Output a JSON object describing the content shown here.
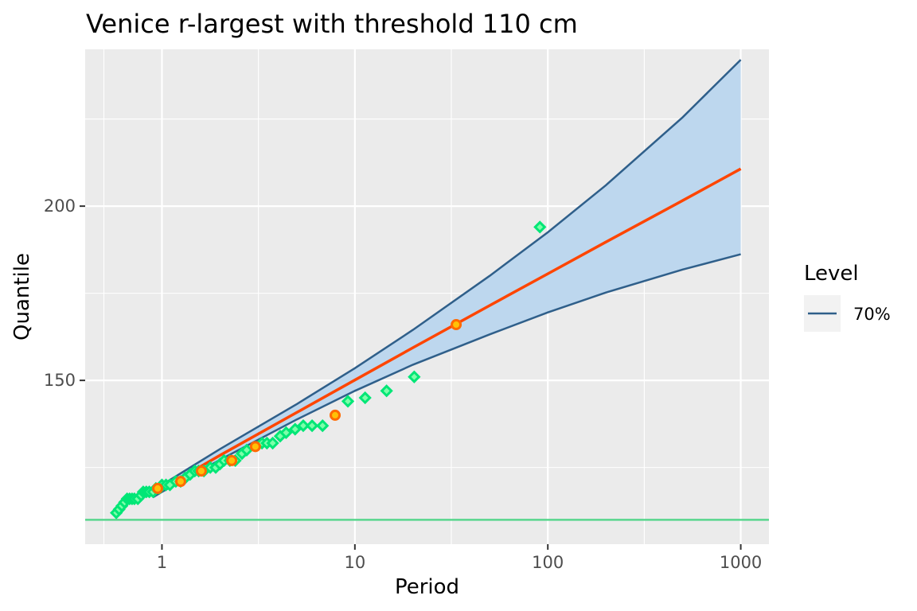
{
  "chart_data": {
    "type": "line",
    "title": "Venice r-largest with threshold 110 cm",
    "xlabel": "Period",
    "ylabel": "Quantile",
    "x_scale": "log10",
    "xlim": [
      0.4,
      1400
    ],
    "ylim": [
      103,
      245
    ],
    "x_ticks": [
      1,
      10,
      100,
      1000
    ],
    "x_tick_labels": [
      "1",
      "10",
      "100",
      "1000"
    ],
    "y_ticks": [
      150,
      200
    ],
    "y_tick_labels": [
      "150",
      "200"
    ],
    "x_minor_ticks": [
      0.5,
      3.1623,
      31.623,
      316.23
    ],
    "y_minor_ticks": [
      125,
      175,
      225
    ],
    "threshold": 110,
    "grid": true,
    "legend": {
      "title": "Level",
      "placement": "right",
      "entries": [
        {
          "label": "70%",
          "color": "#2F5F8A"
        }
      ]
    },
    "return_level": {
      "name": "return level",
      "color": "#FF4500",
      "x": [
        0.9,
        1,
        2,
        5,
        10,
        20,
        50,
        100,
        200,
        500,
        1000
      ],
      "y": [
        117.5,
        118.9,
        128.5,
        140.8,
        150.1,
        159.4,
        171.5,
        180.6,
        189.7,
        201.6,
        210.7
      ]
    },
    "confidence_band": {
      "level": "70%",
      "fill": "#BDD7EE",
      "line": "#2F5F8A",
      "x": [
        0.9,
        1,
        2,
        5,
        10,
        20,
        50,
        100,
        200,
        500,
        1000
      ],
      "upper": [
        118.5,
        120.0,
        130.3,
        143.2,
        153.5,
        164.5,
        180.0,
        192.5,
        206.0,
        225.5,
        242.0
      ],
      "lower": [
        116.5,
        118.0,
        127.2,
        138.8,
        147.0,
        154.5,
        163.2,
        169.5,
        175.2,
        181.8,
        186.2
      ]
    },
    "observed": {
      "name": "observed",
      "color": "#00E676",
      "points": [
        {
          "x": 0.58,
          "y": 112
        },
        {
          "x": 0.6,
          "y": 113
        },
        {
          "x": 0.62,
          "y": 114
        },
        {
          "x": 0.64,
          "y": 115
        },
        {
          "x": 0.66,
          "y": 116
        },
        {
          "x": 0.68,
          "y": 116
        },
        {
          "x": 0.7,
          "y": 116
        },
        {
          "x": 0.72,
          "y": 116
        },
        {
          "x": 0.75,
          "y": 116
        },
        {
          "x": 0.78,
          "y": 117
        },
        {
          "x": 0.8,
          "y": 118
        },
        {
          "x": 0.83,
          "y": 118
        },
        {
          "x": 0.86,
          "y": 118
        },
        {
          "x": 0.9,
          "y": 118
        },
        {
          "x": 0.93,
          "y": 119
        },
        {
          "x": 0.97,
          "y": 119
        },
        {
          "x": 1.0,
          "y": 120
        },
        {
          "x": 1.05,
          "y": 120
        },
        {
          "x": 1.1,
          "y": 120
        },
        {
          "x": 1.18,
          "y": 121
        },
        {
          "x": 1.25,
          "y": 121
        },
        {
          "x": 1.32,
          "y": 122
        },
        {
          "x": 1.4,
          "y": 123
        },
        {
          "x": 1.48,
          "y": 124
        },
        {
          "x": 1.55,
          "y": 124
        },
        {
          "x": 1.65,
          "y": 124
        },
        {
          "x": 1.78,
          "y": 125
        },
        {
          "x": 1.9,
          "y": 125
        },
        {
          "x": 2.0,
          "y": 126
        },
        {
          "x": 2.1,
          "y": 127
        },
        {
          "x": 2.25,
          "y": 127
        },
        {
          "x": 2.4,
          "y": 127
        },
        {
          "x": 2.6,
          "y": 129
        },
        {
          "x": 2.75,
          "y": 130
        },
        {
          "x": 3.3,
          "y": 132
        },
        {
          "x": 3.5,
          "y": 132
        },
        {
          "x": 3.75,
          "y": 132
        },
        {
          "x": 4.1,
          "y": 134
        },
        {
          "x": 4.4,
          "y": 135
        },
        {
          "x": 4.9,
          "y": 136
        },
        {
          "x": 5.4,
          "y": 137
        },
        {
          "x": 6.0,
          "y": 137
        },
        {
          "x": 6.8,
          "y": 137
        },
        {
          "x": 9.2,
          "y": 144
        },
        {
          "x": 11.3,
          "y": 145
        },
        {
          "x": 14.6,
          "y": 147
        },
        {
          "x": 20.3,
          "y": 151
        },
        {
          "x": 91,
          "y": 194
        }
      ]
    },
    "observed_max": {
      "name": "observed maxima",
      "color": "#FF6A00",
      "points": [
        {
          "x": 0.95,
          "y": 119
        },
        {
          "x": 1.25,
          "y": 121
        },
        {
          "x": 1.6,
          "y": 124
        },
        {
          "x": 2.3,
          "y": 127
        },
        {
          "x": 3.05,
          "y": 131
        },
        {
          "x": 7.9,
          "y": 140
        },
        {
          "x": 33.5,
          "y": 166
        }
      ]
    }
  }
}
